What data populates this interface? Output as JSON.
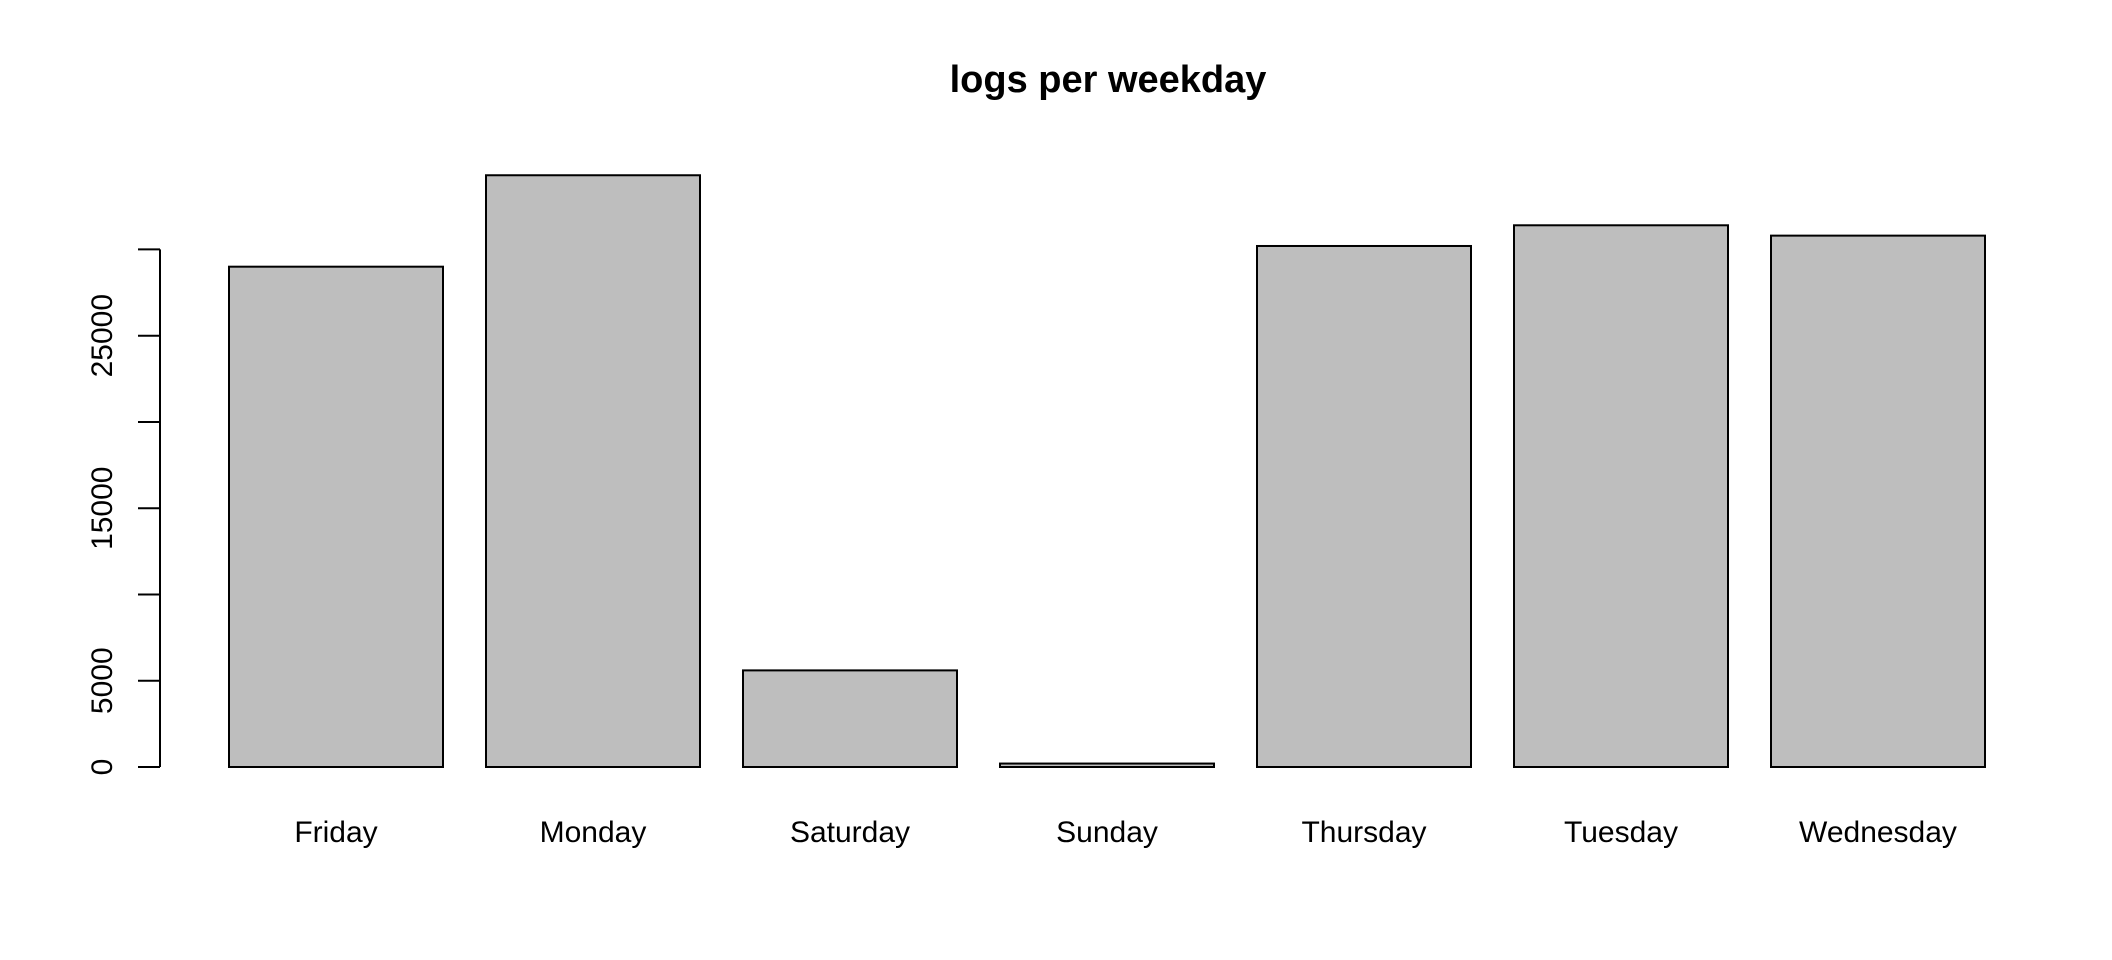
{
  "chart_data": {
    "type": "bar",
    "title": "logs per weekday",
    "xlabel": "",
    "ylabel": "",
    "categories": [
      "Friday",
      "Monday",
      "Saturday",
      "Sunday",
      "Thursday",
      "Tuesday",
      "Wednesday"
    ],
    "values": [
      29000,
      34300,
      5600,
      200,
      30200,
      31400,
      30800
    ],
    "ylim": [
      0,
      35300
    ],
    "y_ticks": [
      0,
      5000,
      10000,
      15000,
      20000,
      25000,
      30000
    ],
    "y_tick_labels": [
      "0",
      "5000",
      "",
      "15000",
      "",
      "25000",
      ""
    ],
    "grid": false,
    "legend": "none",
    "colors": {
      "bar_fill": "#bebebe",
      "bar_stroke": "#000000",
      "axis": "#000000",
      "background": "#ffffff"
    }
  }
}
